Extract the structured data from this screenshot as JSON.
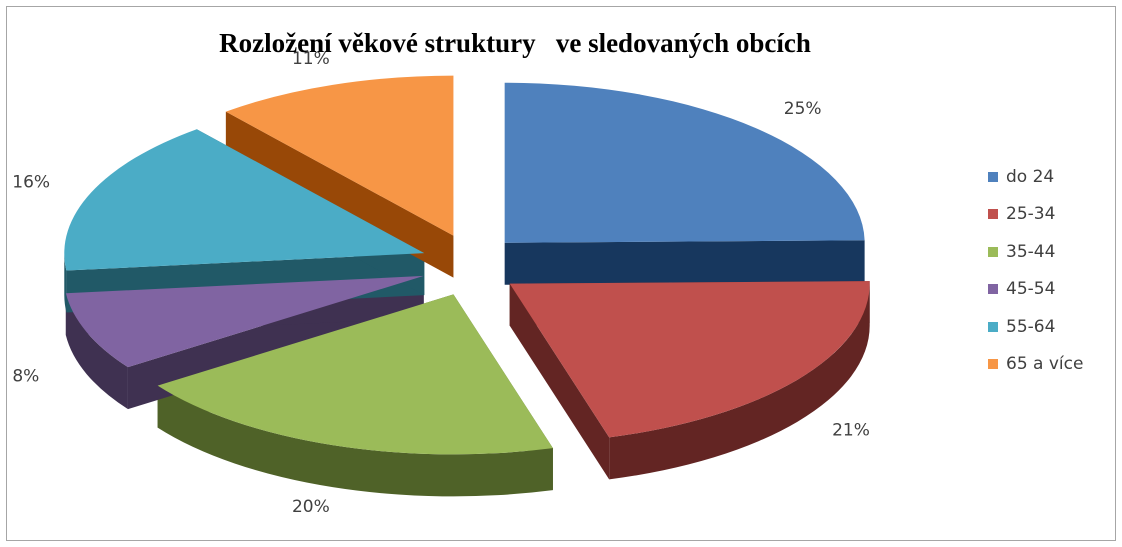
{
  "chart_data": {
    "type": "pie",
    "title": "Rozložení věkové struktury   ve sledovaných obcích",
    "categories": [
      "do 24",
      "25-34",
      "35-44",
      "45-54",
      "55-64",
      "65 a více"
    ],
    "values": [
      25,
      21,
      20,
      8,
      16,
      11
    ],
    "labels": [
      "25%",
      "21%",
      "20%",
      "8%",
      "16%",
      "11%"
    ],
    "colors": [
      "#4f81bd",
      "#c0504d",
      "#9bbb59",
      "#8064a2",
      "#4bacc6",
      "#f79646"
    ],
    "side_colors": [
      "#17375e",
      "#632523",
      "#4f6228",
      "#3f3151",
      "#215967",
      "#984807"
    ],
    "legend_position": "right",
    "style": "3d-exploded"
  }
}
